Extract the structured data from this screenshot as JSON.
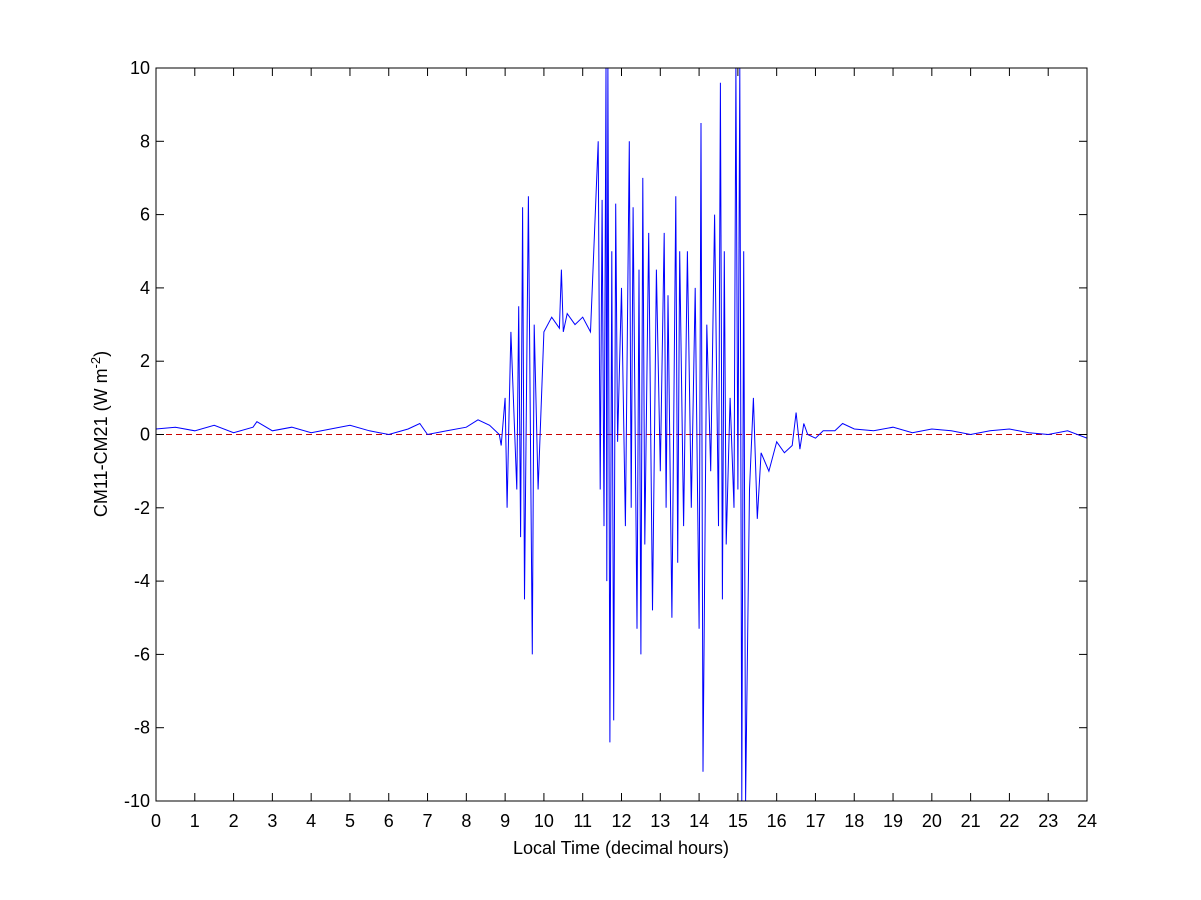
{
  "chart_data": {
    "type": "line",
    "title": "",
    "xlabel": "Local Time (decimal hours)",
    "ylabel": {
      "prefix": "CM11-CM21 (W m",
      "superscript": "-2",
      "suffix": ")"
    },
    "xlim": [
      0,
      24
    ],
    "ylim": [
      -10,
      10
    ],
    "xticks": [
      0,
      1,
      2,
      3,
      4,
      5,
      6,
      7,
      8,
      9,
      10,
      11,
      12,
      13,
      14,
      15,
      16,
      17,
      18,
      19,
      20,
      21,
      22,
      23,
      24
    ],
    "yticks": [
      -10,
      -8,
      -6,
      -4,
      -2,
      0,
      2,
      4,
      6,
      8,
      10
    ],
    "grid": false,
    "legend": "none",
    "reference_line": {
      "y": 0,
      "style": "dashed",
      "color": "#cc0000"
    },
    "series": [
      {
        "color": "#0000ff",
        "x": [
          0.0,
          0.5,
          1.0,
          1.5,
          2.0,
          2.5,
          2.6,
          3.0,
          3.5,
          4.0,
          4.5,
          5.0,
          5.5,
          6.0,
          6.5,
          6.8,
          7.0,
          7.5,
          8.0,
          8.3,
          8.6,
          8.85,
          8.9,
          9.0,
          9.05,
          9.1,
          9.15,
          9.3,
          9.35,
          9.4,
          9.45,
          9.5,
          9.6,
          9.7,
          9.75,
          9.85,
          10.0,
          10.2,
          10.4,
          10.45,
          10.5,
          10.6,
          10.8,
          11.0,
          11.2,
          11.4,
          11.45,
          11.5,
          11.55,
          11.6,
          11.62,
          11.65,
          11.7,
          11.75,
          11.8,
          11.85,
          11.9,
          12.0,
          12.1,
          12.2,
          12.25,
          12.3,
          12.4,
          12.45,
          12.5,
          12.55,
          12.6,
          12.7,
          12.8,
          12.9,
          13.0,
          13.1,
          13.15,
          13.2,
          13.3,
          13.4,
          13.45,
          13.5,
          13.6,
          13.7,
          13.8,
          13.9,
          14.0,
          14.05,
          14.1,
          14.2,
          14.3,
          14.4,
          14.5,
          14.55,
          14.6,
          14.65,
          14.7,
          14.8,
          14.9,
          14.95,
          15.0,
          15.05,
          15.1,
          15.15,
          15.2,
          15.3,
          15.4,
          15.5,
          15.6,
          15.8,
          16.0,
          16.2,
          16.4,
          16.5,
          16.6,
          16.7,
          16.8,
          17.0,
          17.2,
          17.5,
          17.7,
          18.0,
          18.5,
          19.0,
          19.5,
          20.0,
          20.5,
          21.0,
          21.5,
          22.0,
          22.5,
          23.0,
          23.5,
          24.0
        ],
        "y": [
          0.15,
          0.2,
          0.1,
          0.25,
          0.05,
          0.2,
          0.35,
          0.1,
          0.2,
          0.05,
          0.15,
          0.25,
          0.1,
          0.0,
          0.15,
          0.3,
          0.0,
          0.1,
          0.2,
          0.4,
          0.25,
          0.0,
          -0.3,
          1.0,
          -2.0,
          0.5,
          2.8,
          -1.5,
          3.5,
          -2.8,
          6.2,
          -4.5,
          6.5,
          -6.0,
          3.0,
          -1.5,
          2.8,
          3.2,
          2.9,
          4.5,
          2.8,
          3.3,
          3.0,
          3.2,
          2.8,
          8.0,
          -1.5,
          6.4,
          -2.5,
          10.0,
          -4.0,
          10.0,
          -8.4,
          5.0,
          -7.8,
          6.3,
          -0.2,
          4.0,
          -2.5,
          8.0,
          -2.0,
          6.2,
          -5.3,
          4.5,
          -6.0,
          7.0,
          -3.0,
          5.5,
          -4.8,
          4.5,
          -1.0,
          5.5,
          -2.0,
          3.8,
          -5.0,
          6.5,
          -3.5,
          5.0,
          -2.5,
          5.0,
          -2.0,
          4.0,
          -5.3,
          8.5,
          -9.2,
          3.0,
          -1.0,
          6.0,
          -2.5,
          9.6,
          -4.5,
          5.0,
          -3.0,
          1.0,
          -2.0,
          10.0,
          -1.5,
          10.0,
          -10.0,
          5.0,
          -10.0,
          -1.5,
          1.0,
          -2.3,
          -0.5,
          -1.0,
          -0.2,
          -0.5,
          -0.3,
          0.6,
          -0.4,
          0.3,
          0.0,
          -0.1,
          0.1,
          0.1,
          0.3,
          0.15,
          0.1,
          0.2,
          0.05,
          0.15,
          0.1,
          0.0,
          0.1,
          0.15,
          0.05,
          0.0,
          0.1,
          -0.1
        ]
      }
    ]
  }
}
